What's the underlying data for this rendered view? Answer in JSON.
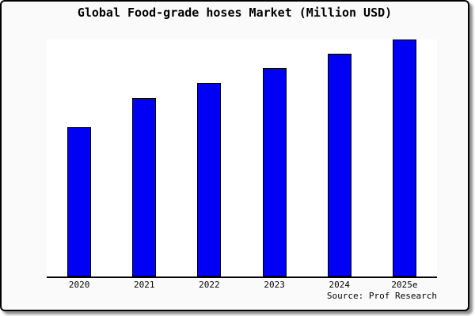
{
  "chart_data": {
    "type": "bar",
    "title": "Global Food-grade hoses Market (Million USD)",
    "categories": [
      "2020",
      "2021",
      "2022",
      "2023",
      "2024",
      "2025e"
    ],
    "values": [
      63,
      75.3,
      81.7,
      88,
      94,
      100
    ],
    "value_note": "No y-axis, gridlines or data labels are shown in the chart; values are relative bar heights normalized so the tallest bar (2025e) = 100.",
    "xlabel": "",
    "ylabel": "",
    "ylim": [
      0,
      100.5
    ],
    "grid": false,
    "legend": "none",
    "source": "Source: Prof Research",
    "bar_fill_color": "#0000f5",
    "bar_edge_color": "#000000",
    "plot_background": "#ffffff",
    "canvas_background": "#fafafa",
    "frame_border_color": "#000000"
  }
}
